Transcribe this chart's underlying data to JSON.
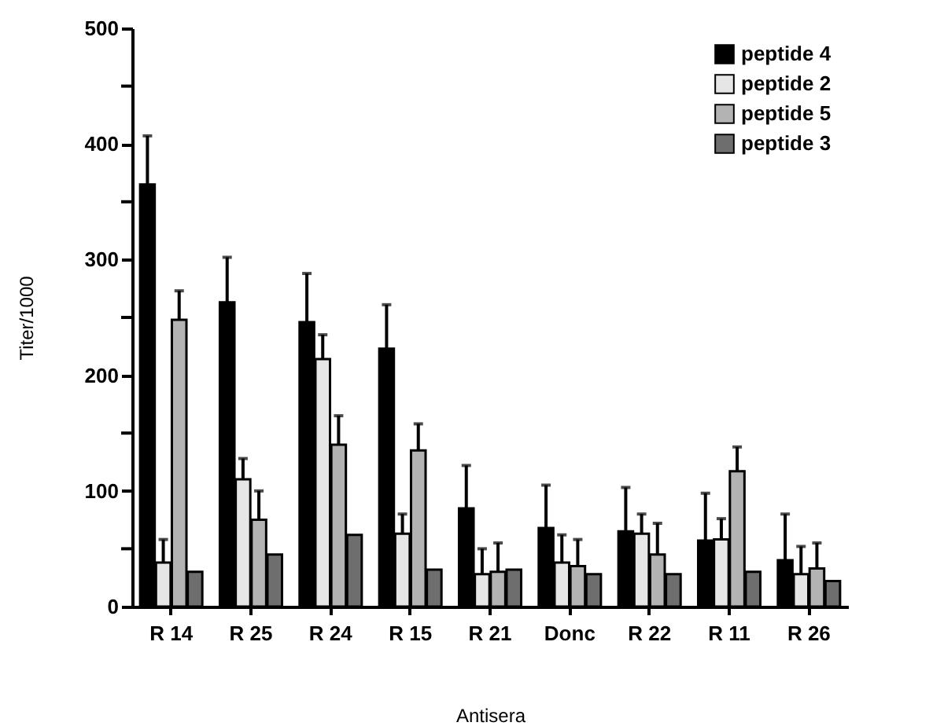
{
  "chart_data": {
    "type": "bar",
    "xlabel": "Antisera",
    "ylabel": "Titer/1000",
    "categories": [
      "R 14",
      "R 25",
      "R 24",
      "R 15",
      "R 21",
      "Donc",
      "R 22",
      "R 11",
      "R 26"
    ],
    "series": [
      {
        "name": "peptide 4",
        "color": "#000000",
        "values": [
          365,
          263,
          246,
          223,
          85,
          68,
          65,
          57,
          40
        ],
        "errors": [
          42,
          39,
          42,
          38,
          37,
          37,
          38,
          41,
          40
        ]
      },
      {
        "name": "peptide 2",
        "color": "#e6e6e6",
        "values": [
          38,
          110,
          214,
          63,
          28,
          38,
          63,
          58,
          28
        ],
        "errors": [
          20,
          18,
          21,
          17,
          22,
          24,
          17,
          18,
          24
        ]
      },
      {
        "name": "peptide 5",
        "color": "#b3b3b3",
        "values": [
          248,
          75,
          140,
          135,
          30,
          35,
          45,
          117,
          33
        ],
        "errors": [
          25,
          25,
          25,
          23,
          25,
          23,
          27,
          21,
          22
        ]
      },
      {
        "name": "peptide 3",
        "color": "#6e6e6e",
        "values": [
          30,
          45,
          62,
          32,
          32,
          28,
          28,
          30,
          22
        ]
      }
    ],
    "ylim": [
      0,
      500
    ],
    "yticks": [
      0,
      {
        "value": 50,
        "label": null
      },
      100,
      {
        "value": 150,
        "label": null
      },
      200,
      {
        "value": 250,
        "label": null
      },
      300,
      {
        "value": 350,
        "label": null
      },
      400,
      {
        "value": 450,
        "label": null
      },
      500
    ],
    "grid": false,
    "legend": "top right"
  }
}
